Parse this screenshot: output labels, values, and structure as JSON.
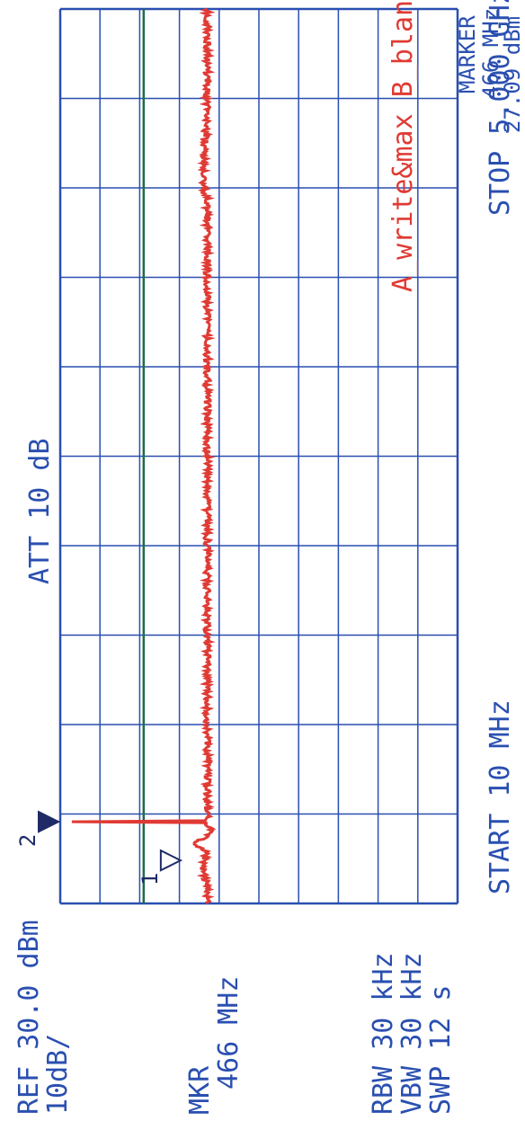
{
  "colors": {
    "grid": "#2a4fb0",
    "trace": "#e03a34",
    "display_line": "#1d6b4a",
    "marker": "#1f2a66",
    "text": "#2a4fb0"
  },
  "header": {
    "ref_level": "REF 30.0 dBm",
    "scale": "10dB/",
    "mkr_label": "MKR",
    "mkr_freq": "466 MHz",
    "rbw": "RBW 30 kHz",
    "vbw": "VBW 30 kHz",
    "swp": "SWP 12 s",
    "att": "ATT 10 dB",
    "start": "START 10 MHz",
    "stop": "STOP 5.000 GHz",
    "trace_legend": "A_write&max B_blank"
  },
  "marker_panel": {
    "title": "MARKER",
    "freq": "466 MHz",
    "level": "27.09 dBm"
  },
  "chart_data": {
    "type": "line",
    "x_unit": "MHz",
    "y_unit": "dBm",
    "xlim": [
      10,
      5000
    ],
    "ylim": [
      -70,
      30
    ],
    "y_divisions": 10,
    "x_divisions": 10,
    "display_line_dbm": 9,
    "series": [
      {
        "name": "A_write&max",
        "noise_floor_dbm": -7,
        "x": [
          10,
          100,
          200,
          240,
          300,
          340,
          380,
          420,
          460,
          466,
          472,
          520,
          700,
          1000,
          1500,
          2000,
          2500,
          3000,
          3500,
          3950,
          4000,
          4050,
          4500,
          4900,
          5000
        ],
        "y": [
          -7,
          -7,
          -6,
          -6,
          -7,
          -3,
          -7,
          -8,
          -7,
          27.09,
          -7,
          -7,
          -7,
          -7,
          -7,
          -7,
          -7,
          -7,
          -7,
          -7,
          -6,
          -6,
          -7,
          -7,
          -7
        ]
      }
    ],
    "markers": [
      {
        "label": "1",
        "x": 250,
        "y": -3,
        "style": "hollow"
      },
      {
        "label": "2",
        "x": 466,
        "y": 27.09,
        "style": "filled"
      }
    ]
  }
}
